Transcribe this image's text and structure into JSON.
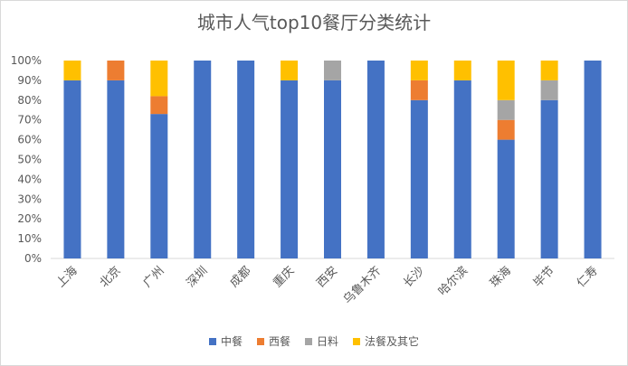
{
  "chart_data": {
    "type": "bar",
    "stacked": true,
    "title": "城市人气top10餐厅分类统计",
    "xlabel": "",
    "ylabel": "",
    "ylim": [
      0,
      100
    ],
    "y_ticks": [
      "0%",
      "10%",
      "20%",
      "30%",
      "40%",
      "50%",
      "60%",
      "70%",
      "80%",
      "90%",
      "100%"
    ],
    "categories": [
      "上海",
      "北京",
      "广州",
      "深圳",
      "成都",
      "重庆",
      "西安",
      "乌鲁木齐",
      "长沙",
      "哈尔滨",
      "珠海",
      "毕节",
      "仁寿"
    ],
    "series": [
      {
        "name": "中餐",
        "color": "#4472c4",
        "values": [
          90,
          90,
          73,
          100,
          100,
          90,
          90,
          100,
          80,
          90,
          60,
          80,
          100
        ]
      },
      {
        "name": "西餐",
        "color": "#ed7d31",
        "values": [
          0,
          10,
          9,
          0,
          0,
          0,
          0,
          0,
          10,
          0,
          10,
          0,
          0
        ]
      },
      {
        "name": "日料",
        "color": "#a5a5a5",
        "values": [
          0,
          0,
          0,
          0,
          0,
          0,
          10,
          0,
          0,
          0,
          10,
          10,
          0
        ]
      },
      {
        "name": "法餐及其它",
        "color": "#ffc000",
        "values": [
          10,
          0,
          18,
          0,
          0,
          10,
          0,
          0,
          10,
          10,
          20,
          10,
          0
        ]
      }
    ],
    "legend_position": "bottom",
    "grid": false
  }
}
